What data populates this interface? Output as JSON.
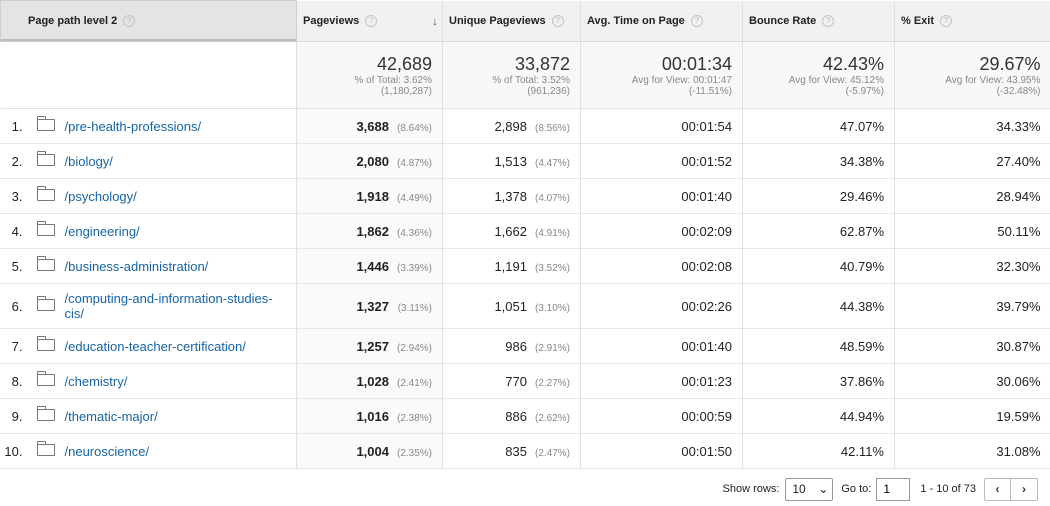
{
  "columns": {
    "dimension": "Page path level 2",
    "pageviews": "Pageviews",
    "unique": "Unique Pageviews",
    "avgtime": "Avg. Time on Page",
    "bounce": "Bounce Rate",
    "exit": "% Exit",
    "help_glyph": "?",
    "sort_glyph": "↓"
  },
  "totals": {
    "pageviews": {
      "value": "42,689",
      "line1": "% of Total: 3.62%",
      "line2": "(1,180,287)"
    },
    "unique": {
      "value": "33,872",
      "line1": "% of Total: 3.52%",
      "line2": "(961,236)"
    },
    "avgtime": {
      "value": "00:01:34",
      "line1": "Avg for View: 00:01:47",
      "line2": "(-11.51%)"
    },
    "bounce": {
      "value": "42.43%",
      "line1": "Avg for View: 45.12%",
      "line2": "(-5.97%)"
    },
    "exit": {
      "value": "29.67%",
      "line1": "Avg for View: 43.95%",
      "line2": "(-32.48%)"
    }
  },
  "rows": [
    {
      "idx": "1.",
      "path": "/pre-health-professions/",
      "pv": "3,688",
      "pv_pct": "(8.64%)",
      "upv": "2,898",
      "upv_pct": "(8.56%)",
      "time": "00:01:54",
      "bounce": "47.07%",
      "exit": "34.33%"
    },
    {
      "idx": "2.",
      "path": "/biology/",
      "pv": "2,080",
      "pv_pct": "(4.87%)",
      "upv": "1,513",
      "upv_pct": "(4.47%)",
      "time": "00:01:52",
      "bounce": "34.38%",
      "exit": "27.40%"
    },
    {
      "idx": "3.",
      "path": "/psychology/",
      "pv": "1,918",
      "pv_pct": "(4.49%)",
      "upv": "1,378",
      "upv_pct": "(4.07%)",
      "time": "00:01:40",
      "bounce": "29.46%",
      "exit": "28.94%"
    },
    {
      "idx": "4.",
      "path": "/engineering/",
      "pv": "1,862",
      "pv_pct": "(4.36%)",
      "upv": "1,662",
      "upv_pct": "(4.91%)",
      "time": "00:02:09",
      "bounce": "62.87%",
      "exit": "50.11%"
    },
    {
      "idx": "5.",
      "path": "/business-administration/",
      "pv": "1,446",
      "pv_pct": "(3.39%)",
      "upv": "1,191",
      "upv_pct": "(3.52%)",
      "time": "00:02:08",
      "bounce": "40.79%",
      "exit": "32.30%"
    },
    {
      "idx": "6.",
      "path": "/computing-and-information-studies-cis/",
      "pv": "1,327",
      "pv_pct": "(3.11%)",
      "upv": "1,051",
      "upv_pct": "(3.10%)",
      "time": "00:02:26",
      "bounce": "44.38%",
      "exit": "39.79%"
    },
    {
      "idx": "7.",
      "path": "/education-teacher-certification/",
      "pv": "1,257",
      "pv_pct": "(2.94%)",
      "upv": "986",
      "upv_pct": "(2.91%)",
      "time": "00:01:40",
      "bounce": "48.59%",
      "exit": "30.87%"
    },
    {
      "idx": "8.",
      "path": "/chemistry/",
      "pv": "1,028",
      "pv_pct": "(2.41%)",
      "upv": "770",
      "upv_pct": "(2.27%)",
      "time": "00:01:23",
      "bounce": "37.86%",
      "exit": "30.06%"
    },
    {
      "idx": "9.",
      "path": "/thematic-major/",
      "pv": "1,016",
      "pv_pct": "(2.38%)",
      "upv": "886",
      "upv_pct": "(2.62%)",
      "time": "00:00:59",
      "bounce": "44.94%",
      "exit": "19.59%"
    },
    {
      "idx": "10.",
      "path": "/neuroscience/",
      "pv": "1,004",
      "pv_pct": "(2.35%)",
      "upv": "835",
      "upv_pct": "(2.47%)",
      "time": "00:01:50",
      "bounce": "42.11%",
      "exit": "31.08%"
    }
  ],
  "footer": {
    "show_rows_label": "Show rows:",
    "show_rows_value": "10",
    "goto_label": "Go to:",
    "goto_value": "1",
    "range": "1 - 10 of 73",
    "prev_glyph": "‹",
    "next_glyph": "›",
    "dropdown_glyph": "⌄"
  }
}
